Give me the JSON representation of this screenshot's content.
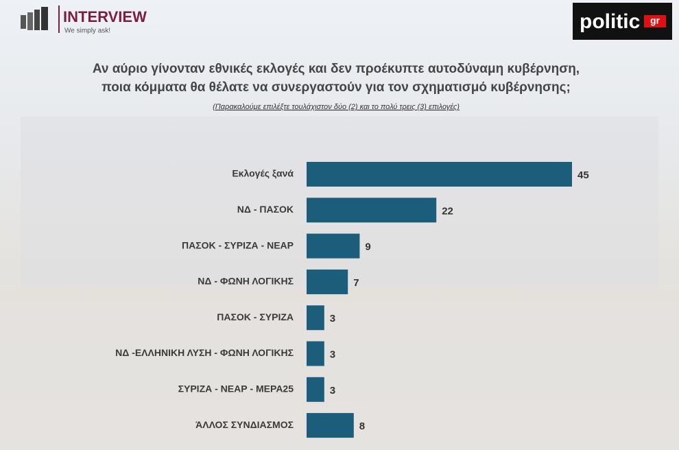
{
  "logos": {
    "brand": "INTERVIEW",
    "tagline": "We simply ask!",
    "partner": "politic",
    "partner_suffix": "gr"
  },
  "chart_data": {
    "type": "hbar",
    "title": [
      "Αν αύριο γίνονταν εθνικές εκλογές και δεν προέκυπτε αυτοδύναμη κυβέρνηση,",
      "ποια κόμματα θα θέλατε να συνεργαστούν για τον σχηματισμό κυβέρνησης;"
    ],
    "subtitle": "(Παρακαλούμε επιλέξτε τουλάχιστον δύο (2) και το πολύ τρεις (3) επιλογές)",
    "categories": [
      "Εκλογές ξανά",
      "ΝΔ - ΠΑΣΟΚ",
      "ΠΑΣΟΚ - ΣΥΡΙΖΑ - ΝΕΑΡ",
      "ΝΔ - ΦΩΝΗ ΛΟΓΙΚΗΣ",
      "ΠΑΣΟΚ - ΣΥΡΙΖΑ",
      "ΝΔ -ΕΛΛΗΝΙΚΗ ΛΥΣΗ - ΦΩΝΗ ΛΟΓΙΚΗΣ",
      "ΣΥΡΙΖΑ - ΝΕΑΡ - ΜΕΡΑ25",
      "ΆΛΛΟΣ ΣΥΝΔΙΑΣΜΟΣ"
    ],
    "values": [
      45,
      22,
      9,
      7,
      3,
      3,
      3,
      8
    ],
    "color": "#1d5d7c"
  }
}
